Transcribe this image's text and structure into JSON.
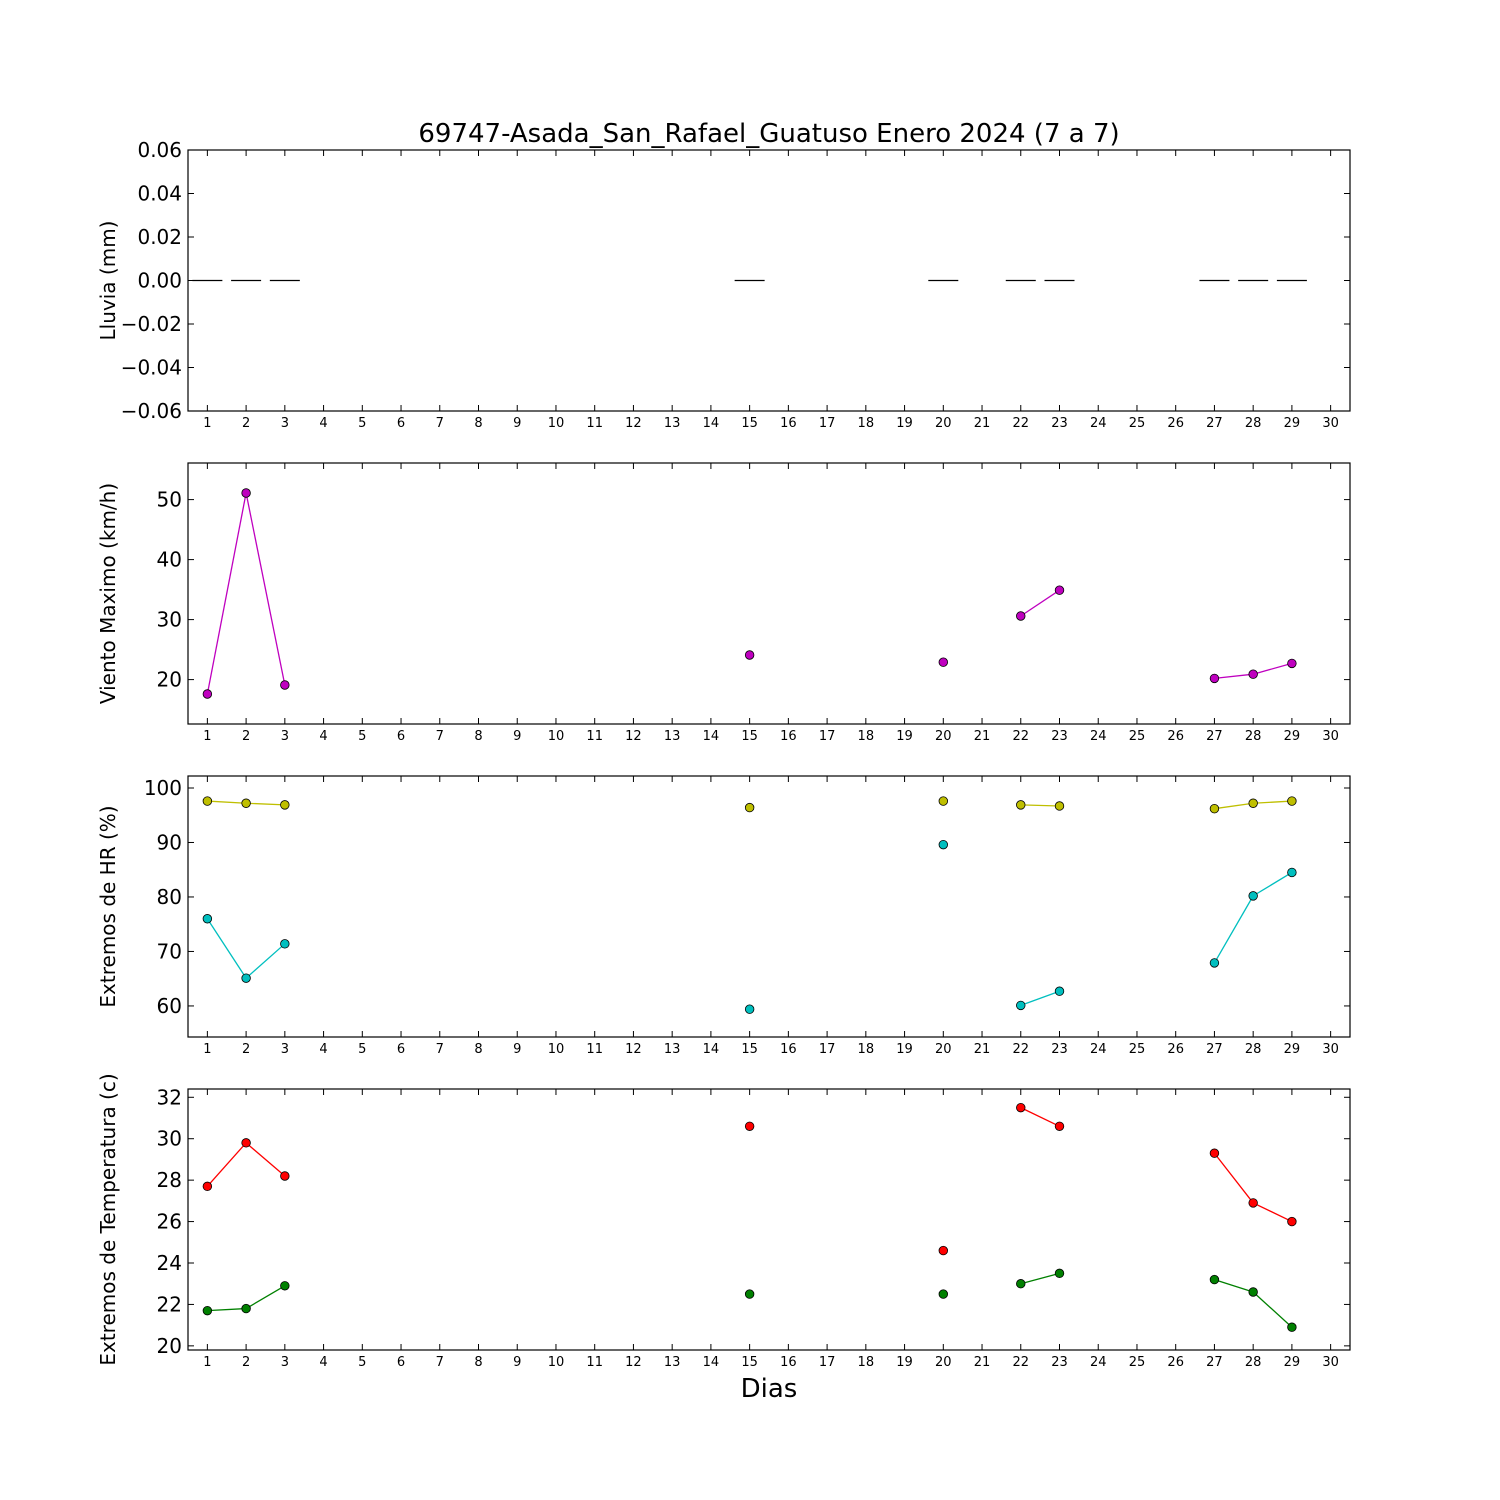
{
  "figure": {
    "title": "69747-Asada_San_Rafael_Guatuso Enero 2024  (7 a 7)",
    "xlabel": "Dias"
  },
  "chart_data": [
    {
      "type": "scatter",
      "id": "rain",
      "ylabel": "Lluvia (mm)",
      "xlim": [
        0.5,
        30.5
      ],
      "ylim": [
        -0.06,
        0.06
      ],
      "yticks": [
        -0.06,
        -0.04,
        -0.02,
        0.0,
        0.02,
        0.04,
        0.06
      ],
      "ytick_labels": [
        "−0.06",
        "−0.04",
        "−0.02",
        "0.00",
        "0.02",
        "0.04",
        "0.06"
      ],
      "xticks": [
        1,
        2,
        3,
        4,
        5,
        6,
        7,
        8,
        9,
        10,
        11,
        12,
        13,
        14,
        15,
        16,
        17,
        18,
        19,
        20,
        21,
        22,
        23,
        24,
        25,
        26,
        27,
        28,
        29,
        30
      ],
      "grid": false,
      "series": [
        {
          "marker": "hline",
          "color": "#000000",
          "x": [
            1,
            2,
            3,
            15,
            20,
            22,
            23,
            27,
            28,
            29
          ],
          "y": [
            0,
            0,
            0,
            0,
            0,
            0,
            0,
            0,
            0,
            0
          ]
        }
      ]
    },
    {
      "type": "line",
      "id": "wind",
      "ylabel": "Viento Maximo (km/h)",
      "xlim": [
        0.5,
        30.5
      ],
      "ylim": [
        12.6,
        56.1
      ],
      "yticks": [
        20,
        30,
        40,
        50
      ],
      "ytick_labels": [
        "20",
        "30",
        "40",
        "50"
      ],
      "xticks": [
        1,
        2,
        3,
        4,
        5,
        6,
        7,
        8,
        9,
        10,
        11,
        12,
        13,
        14,
        15,
        16,
        17,
        18,
        19,
        20,
        21,
        22,
        23,
        24,
        25,
        26,
        27,
        28,
        29,
        30
      ],
      "grid": false,
      "series": [
        {
          "color": "#bf00bf",
          "x": [
            1,
            2,
            3,
            15,
            20,
            22,
            23,
            27,
            28,
            29
          ],
          "y": [
            17.6,
            51.1,
            19.1,
            24.1,
            22.9,
            30.6,
            34.9,
            20.2,
            20.9,
            22.7
          ]
        }
      ]
    },
    {
      "type": "line",
      "id": "hr",
      "ylabel": "Extremos de HR (%)",
      "xlim": [
        0.5,
        30.5
      ],
      "ylim": [
        54.3,
        102.2
      ],
      "yticks": [
        60,
        70,
        80,
        90,
        100
      ],
      "ytick_labels": [
        "60",
        "70",
        "80",
        "90",
        "100"
      ],
      "xticks": [
        1,
        2,
        3,
        4,
        5,
        6,
        7,
        8,
        9,
        10,
        11,
        12,
        13,
        14,
        15,
        16,
        17,
        18,
        19,
        20,
        21,
        22,
        23,
        24,
        25,
        26,
        27,
        28,
        29,
        30
      ],
      "grid": false,
      "series": [
        {
          "color": "#bfbf00",
          "x": [
            1,
            2,
            3,
            15,
            20,
            22,
            23,
            27,
            28,
            29
          ],
          "y": [
            97.6,
            97.2,
            96.9,
            96.4,
            97.6,
            96.9,
            96.7,
            96.2,
            97.2,
            97.6
          ]
        },
        {
          "color": "#00bfbf",
          "x": [
            1,
            2,
            3,
            15,
            20,
            22,
            23,
            27,
            28,
            29
          ],
          "y": [
            76.0,
            65.1,
            71.4,
            59.4,
            89.6,
            60.1,
            62.7,
            67.9,
            80.2,
            84.5
          ]
        }
      ]
    },
    {
      "type": "line",
      "id": "temp",
      "ylabel": "Extremos de Temperatura (c)",
      "xlim": [
        0.5,
        30.5
      ],
      "ylim": [
        19.8,
        32.4
      ],
      "yticks": [
        20,
        22,
        24,
        26,
        28,
        30,
        32
      ],
      "ytick_labels": [
        "20",
        "22",
        "24",
        "26",
        "28",
        "30",
        "32"
      ],
      "xticks": [
        1,
        2,
        3,
        4,
        5,
        6,
        7,
        8,
        9,
        10,
        11,
        12,
        13,
        14,
        15,
        16,
        17,
        18,
        19,
        20,
        21,
        22,
        23,
        24,
        25,
        26,
        27,
        28,
        29,
        30
      ],
      "grid": false,
      "series": [
        {
          "color": "#ff0000",
          "x": [
            1,
            2,
            3,
            15,
            20,
            22,
            23,
            27,
            28,
            29
          ],
          "y": [
            27.7,
            29.8,
            28.2,
            30.6,
            24.6,
            31.5,
            30.6,
            29.3,
            26.9,
            26.0
          ]
        },
        {
          "color": "#008000",
          "x": [
            1,
            2,
            3,
            15,
            20,
            22,
            23,
            27,
            28,
            29
          ],
          "y": [
            21.7,
            21.8,
            22.9,
            22.5,
            22.5,
            23.0,
            23.5,
            23.2,
            22.6,
            20.9
          ]
        }
      ]
    }
  ]
}
